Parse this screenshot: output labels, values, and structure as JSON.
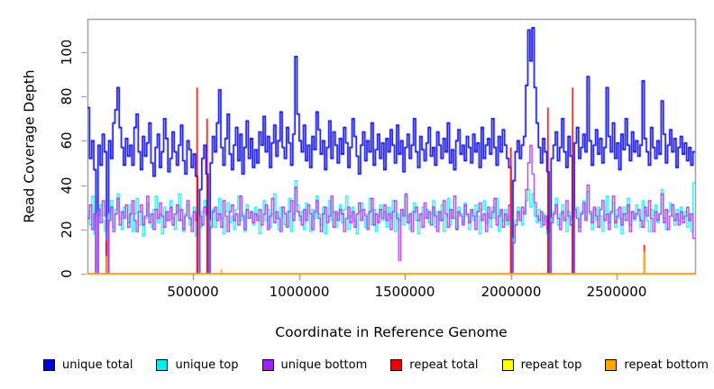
{
  "chart_data": {
    "type": "line",
    "line_style": "step",
    "title": "",
    "xlabel": "Coordinate in Reference Genome",
    "ylabel": "Read Coverage Depth",
    "xlim": [
      0,
      2870000
    ],
    "ylim": [
      0,
      115
    ],
    "x_step": 10000,
    "grid": "off",
    "legend_position": "bottom",
    "axis_color": "#888888",
    "tick_label_color": "#000000",
    "xticks": [
      500000,
      1000000,
      1500000,
      2000000,
      2500000
    ],
    "xtick_labels": [
      "500000",
      "1000000",
      "1500000",
      "2000000",
      "2500000"
    ],
    "yticks": [
      0,
      20,
      40,
      60,
      80,
      100
    ],
    "ytick_labels": [
      "0",
      "20",
      "40",
      "60",
      "80",
      "100"
    ],
    "series": [
      {
        "name": "unique total",
        "color": "#0000EE",
        "style": "step",
        "line_width": 1.6,
        "values": [
          75,
          52,
          60,
          47,
          0,
          58,
          49,
          63,
          55,
          0,
          60,
          52,
          68,
          74,
          84,
          66,
          57,
          49,
          61,
          53,
          58,
          49,
          66,
          72,
          55,
          47,
          62,
          53,
          59,
          68,
          50,
          44,
          57,
          63,
          48,
          55,
          70,
          61,
          46,
          52,
          64,
          55,
          49,
          58,
          67,
          51,
          45,
          60,
          56,
          48,
          54,
          44,
          0,
          38,
          52,
          58,
          45,
          0,
          50,
          62,
          55,
          68,
          83,
          57,
          49,
          61,
          72,
          54,
          47,
          58,
          66,
          51,
          63,
          45,
          57,
          69,
          52,
          61,
          48,
          56,
          50,
          64,
          58,
          71,
          55,
          62,
          48,
          59,
          67,
          53,
          60,
          73,
          57,
          52,
          66,
          59,
          49,
          63,
          98,
          72,
          60,
          55,
          67,
          51,
          58,
          48,
          62,
          56,
          73,
          65,
          54,
          60,
          47,
          57,
          69,
          52,
          64,
          58,
          50,
          61,
          54,
          66,
          59,
          48,
          57,
          70,
          62,
          53,
          45,
          58,
          64,
          51,
          60,
          55,
          68,
          49,
          56,
          63,
          52,
          59,
          47,
          61,
          55,
          65,
          58,
          50,
          67,
          54,
          60,
          46,
          57,
          63,
          52,
          58,
          70,
          55,
          48,
          62,
          56,
          51,
          59,
          66,
          53,
          57,
          49,
          64,
          58,
          52,
          61,
          55,
          68,
          50,
          56,
          47,
          60,
          65,
          54,
          58,
          51,
          62,
          57,
          50,
          63,
          55,
          59,
          48,
          66,
          52,
          58,
          61,
          54,
          70,
          57,
          49,
          62,
          55,
          65,
          58,
          52,
          48,
          0,
          42,
          55,
          60,
          52,
          58,
          62,
          85,
          110,
          96,
          111,
          84,
          68,
          57,
          50,
          61,
          55,
          46,
          0,
          52,
          58,
          64,
          51,
          57,
          70,
          55,
          48,
          62,
          53,
          0,
          59,
          66,
          52,
          57,
          63,
          55,
          89,
          60,
          49,
          58,
          65,
          54,
          61,
          50,
          57,
          84,
          62,
          55,
          68,
          52,
          59,
          47,
          63,
          56,
          70,
          58,
          51,
          64,
          55,
          60,
          53,
          58,
          87,
          61,
          55,
          49,
          66,
          57,
          52,
          60,
          54,
          78,
          63,
          50,
          58,
          65,
          55,
          61,
          48,
          57,
          62,
          54,
          59,
          51,
          57,
          49,
          55
        ]
      },
      {
        "name": "unique top",
        "color": "#00EEEE",
        "style": "step",
        "line_width": 1.2,
        "values": [
          28,
          22,
          35,
          18,
          0,
          26,
          31,
          24,
          19,
          0,
          27,
          33,
          21,
          29,
          36,
          25,
          20,
          30,
          26,
          23,
          31,
          19,
          27,
          34,
          22,
          28,
          17,
          25,
          32,
          26,
          21,
          29,
          35,
          23,
          27,
          18,
          30,
          24,
          28,
          33,
          25,
          20,
          28,
          36,
          24,
          19,
          27,
          31,
          22,
          26,
          30,
          17,
          0,
          21,
          28,
          33,
          26,
          0,
          24,
          29,
          21,
          27,
          34,
          25,
          18,
          28,
          32,
          23,
          26,
          20,
          29,
          35,
          24,
          27,
          19,
          31,
          25,
          28,
          22,
          30,
          26,
          18,
          28,
          33,
          24,
          29,
          21,
          27,
          36,
          25,
          20,
          30,
          26,
          22,
          28,
          34,
          19,
          27,
          42,
          31,
          24,
          28,
          20,
          32,
          26,
          19,
          29,
          25,
          35,
          27,
          22,
          30,
          18,
          26,
          33,
          24,
          28,
          21,
          27,
          31,
          23,
          29,
          35,
          20,
          26,
          30,
          24,
          18,
          28,
          32,
          25,
          21,
          27,
          34,
          22,
          29,
          19,
          26,
          31,
          24,
          28,
          21,
          30,
          25,
          33,
          19,
          27,
          24,
          29,
          22,
          35,
          26,
          20,
          28,
          32,
          24,
          18,
          27,
          30,
          25,
          29,
          23,
          27,
          33,
          21,
          28,
          24,
          31,
          19,
          26,
          34,
          22,
          29,
          25,
          20,
          30,
          27,
          23,
          32,
          26,
          20,
          28,
          24,
          31,
          26,
          18,
          29,
          33,
          23,
          27,
          21,
          30,
          25,
          34,
          19,
          28,
          24,
          29,
          22,
          26,
          0,
          16,
          24,
          30,
          26,
          22,
          28,
          33,
          38,
          30,
          36,
          26,
          23,
          29,
          21,
          27,
          24,
          18,
          0,
          25,
          28,
          34,
          22,
          27,
          31,
          25,
          19,
          28,
          24,
          0,
          26,
          30,
          21,
          28,
          33,
          25,
          37,
          27,
          20,
          29,
          24,
          30,
          26,
          19,
          28,
          35,
          23,
          27,
          32,
          21,
          29,
          25,
          18,
          30,
          27,
          34,
          22,
          28,
          24,
          31,
          26,
          21,
          33,
          28,
          24,
          19,
          29,
          26,
          31,
          23,
          27,
          38,
          25,
          20,
          28,
          32,
          26,
          22,
          29,
          24,
          30,
          25,
          28,
          21,
          27,
          19,
          41
        ]
      },
      {
        "name": "unique bottom",
        "color": "#A020F0",
        "style": "step",
        "line_width": 1.2,
        "values": [
          25,
          31,
          20,
          27,
          0,
          29,
          23,
          33,
          26,
          0,
          24,
          30,
          19,
          27,
          34,
          22,
          28,
          25,
          31,
          21,
          27,
          33,
          24,
          19,
          28,
          31,
          22,
          26,
          35,
          23,
          27,
          20,
          29,
          25,
          32,
          26,
          21,
          28,
          24,
          30,
          22,
          27,
          31,
          24,
          29,
          20,
          26,
          33,
          25,
          19,
          28,
          24,
          0,
          26,
          22,
          30,
          27,
          0,
          21,
          28,
          30,
          24,
          27,
          21,
          33,
          26,
          19,
          28,
          31,
          24,
          27,
          22,
          35,
          26,
          20,
          29,
          25,
          28,
          23,
          27,
          24,
          29,
          22,
          27,
          31,
          20,
          26,
          34,
          23,
          28,
          25,
          19,
          30,
          27,
          21,
          28,
          33,
          24,
          39,
          28,
          26,
          22,
          29,
          24,
          31,
          27,
          20,
          28,
          33,
          25,
          19,
          27,
          30,
          23,
          26,
          35,
          21,
          28,
          24,
          29,
          27,
          19,
          25,
          30,
          23,
          28,
          21,
          27,
          32,
          24,
          29,
          26,
          20,
          28,
          34,
          22,
          27,
          23,
          29,
          25,
          31,
          24,
          27,
          20,
          28,
          33,
          25,
          6,
          29,
          26,
          36,
          23,
          27,
          19,
          28,
          30,
          24,
          27,
          21,
          32,
          25,
          28,
          22,
          30,
          26,
          19,
          28,
          24,
          33,
          27,
          21,
          29,
          25,
          35,
          20,
          28,
          26,
          22,
          31,
          27,
          23,
          29,
          26,
          20,
          28,
          32,
          24,
          27,
          19,
          30,
          25,
          28,
          34,
          22,
          26,
          29,
          21,
          27,
          24,
          31,
          0,
          14,
          22,
          28,
          24,
          30,
          27,
          38,
          50,
          58,
          45,
          32,
          26,
          24,
          28,
          22,
          26,
          20,
          0,
          23,
          27,
          31,
          25,
          20,
          28,
          24,
          33,
          26,
          22,
          0,
          29,
          25,
          19,
          27,
          32,
          24,
          40,
          28,
          23,
          30,
          26,
          21,
          29,
          33,
          24,
          27,
          20,
          28,
          35,
          23,
          26,
          30,
          22,
          27,
          24,
          31,
          19,
          28,
          25,
          27,
          29,
          24,
          21,
          30,
          26,
          33,
          25,
          19,
          28,
          24,
          27,
          36,
          23,
          29,
          20,
          26,
          31,
          24,
          27,
          22,
          28,
          23,
          26,
          30,
          24,
          27,
          16
        ]
      },
      {
        "name": "repeat total",
        "color": "#EE0000",
        "style": "spikes",
        "line_width": 1.6,
        "baseline": 0,
        "spikes": [
          [
            90000,
            15
          ],
          [
            518000,
            84
          ],
          [
            565000,
            70
          ],
          [
            2000000,
            57
          ],
          [
            2175000,
            75
          ],
          [
            2292000,
            84
          ],
          [
            2630000,
            13
          ]
        ]
      },
      {
        "name": "repeat top",
        "color": "#FFFF00",
        "style": "spikes",
        "line_width": 1.2,
        "baseline": 0,
        "spikes": []
      },
      {
        "name": "repeat bottom",
        "color": "#FFA500",
        "style": "spikes",
        "line_width": 1.6,
        "baseline": 0,
        "spikes": [
          [
            90000,
            8
          ],
          [
            633000,
            2
          ],
          [
            2630000,
            10
          ]
        ]
      }
    ]
  }
}
